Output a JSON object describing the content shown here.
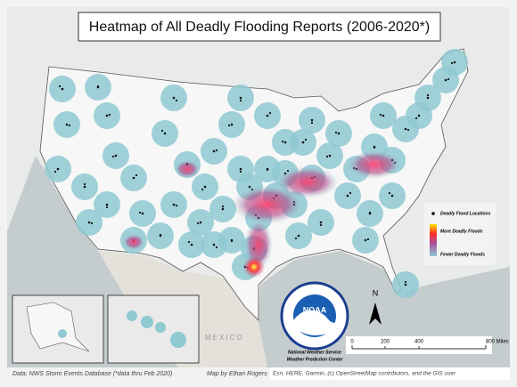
{
  "title": "Heatmap of All Deadly Flooding Reports (2006-2020*)",
  "legend": {
    "items": [
      "Deadly Flood Locations",
      "More Deadly Floods",
      "Fewer Deadly Floods"
    ]
  },
  "logo": {
    "name": "NOAA",
    "lines": [
      "National Weather Service",
      "Weather Prediction Center"
    ]
  },
  "north": "N",
  "place": "MEXICO",
  "scale_bar": {
    "labels": [
      "0",
      "200",
      "400",
      "800 Miles"
    ]
  },
  "credits": {
    "data": "Data: NWS Storm Events Database (*data thru Feb 2020)",
    "author": "Map by Ethan Rogers",
    "sources": "Esri, HERE, Garmin, (c) OpenStreetMap contributors, and the GIS user"
  }
}
